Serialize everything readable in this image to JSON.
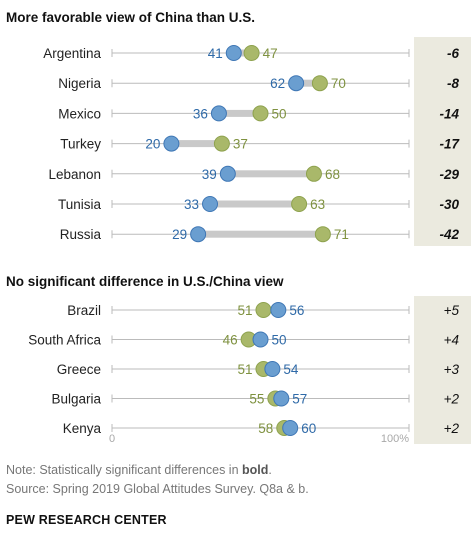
{
  "colors": {
    "china": "#a9b86a",
    "china_stroke": "#8ea24e",
    "us": "#6a9ed0",
    "us_stroke": "#3f77b5",
    "china_text": "#7f9240",
    "us_text": "#2f6aa8",
    "diff_panel": "#ebeadf",
    "track": "#bbbbbb",
    "gap_fill": "#c9c9c9"
  },
  "footer": {
    "note_prefix": "Note: Statistically significant differences in ",
    "note_bold": "bold",
    "note_suffix": ".",
    "source": "Source: Spring 2019 Global Attitudes Survey. Q8a & b.",
    "brand": "PEW RESEARCH CENTER"
  },
  "chart_data": {
    "type": "dot",
    "xlim": [
      0,
      100
    ],
    "axis_labels": [
      "0",
      "100%"
    ],
    "sections": [
      {
        "title": "More favorable view of China than U.S.",
        "rows": [
          {
            "country": "Argentina",
            "us": 41,
            "china": 47,
            "diff": "-6",
            "bold": true
          },
          {
            "country": "Nigeria",
            "us": 62,
            "china": 70,
            "diff": "-8",
            "bold": true
          },
          {
            "country": "Mexico",
            "us": 36,
            "china": 50,
            "diff": "-14",
            "bold": true
          },
          {
            "country": "Turkey",
            "us": 20,
            "china": 37,
            "diff": "-17",
            "bold": true
          },
          {
            "country": "Lebanon",
            "us": 39,
            "china": 68,
            "diff": "-29",
            "bold": true
          },
          {
            "country": "Tunisia",
            "us": 33,
            "china": 63,
            "diff": "-30",
            "bold": true
          },
          {
            "country": "Russia",
            "us": 29,
            "china": 71,
            "diff": "-42",
            "bold": true
          }
        ]
      },
      {
        "title": "No significant difference in U.S./China view",
        "rows": [
          {
            "country": "Brazil",
            "us": 56,
            "china": 51,
            "diff": "+5",
            "bold": false
          },
          {
            "country": "South Africa",
            "us": 50,
            "china": 46,
            "diff": "+4",
            "bold": false
          },
          {
            "country": "Greece",
            "us": 54,
            "china": 51,
            "diff": "+3",
            "bold": false
          },
          {
            "country": "Bulgaria",
            "us": 57,
            "china": 55,
            "diff": "+2",
            "bold": false
          },
          {
            "country": "Kenya",
            "us": 60,
            "china": 58,
            "diff": "+2",
            "bold": false
          }
        ]
      }
    ]
  }
}
